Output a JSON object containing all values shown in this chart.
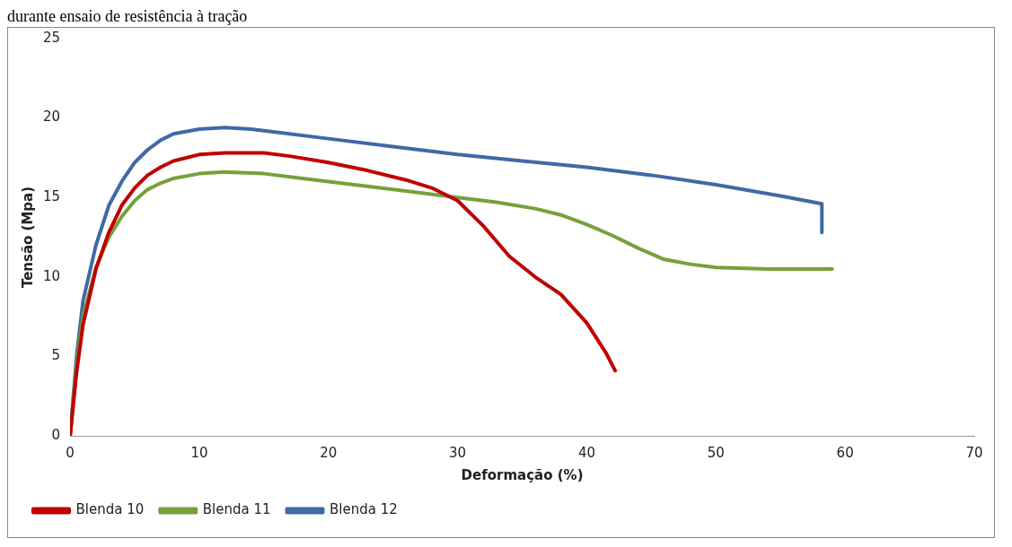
{
  "chart_data": {
    "type": "line",
    "title": "durante ensaio de resistência à tração",
    "xlabel": "Deformação (%)",
    "ylabel": "Tensão (Mpa)",
    "xlim": [
      0,
      70
    ],
    "xticks": [
      0,
      10,
      20,
      30,
      40,
      50,
      60,
      70
    ],
    "ylim": [
      0,
      25
    ],
    "yticks": [
      0,
      5,
      10,
      15,
      20,
      25
    ],
    "grid": false,
    "legend": "bottom",
    "marker": "none",
    "line_style": "solid",
    "series": [
      {
        "name": "Blenda 10",
        "color": "#c00000",
        "x": [
          0,
          0.5,
          1,
          2,
          3,
          4,
          5,
          6,
          7,
          8,
          10,
          12,
          15,
          17,
          20,
          23,
          26,
          28,
          30,
          32,
          34,
          36,
          38,
          40,
          41.5,
          42.2
        ],
        "values": [
          0,
          4,
          7,
          10.5,
          12.8,
          14.5,
          15.6,
          16.4,
          16.9,
          17.3,
          17.7,
          17.8,
          17.8,
          17.6,
          17.2,
          16.7,
          16.1,
          15.6,
          14.8,
          13.2,
          11.3,
          10,
          8.9,
          7.1,
          5.2,
          4.1
        ]
      },
      {
        "name": "Blenda 11",
        "color": "#77a03a",
        "x": [
          0,
          0.5,
          1,
          2,
          3,
          4,
          5,
          6,
          7,
          8,
          10,
          12,
          15,
          18,
          20,
          25,
          30,
          33,
          36,
          38,
          40,
          42,
          44,
          46,
          48,
          50,
          54,
          57,
          59
        ],
        "values": [
          0,
          4.5,
          7.5,
          10.6,
          12.5,
          13.8,
          14.8,
          15.5,
          15.9,
          16.2,
          16.5,
          16.6,
          16.5,
          16.2,
          16,
          15.5,
          15,
          14.7,
          14.3,
          13.9,
          13.3,
          12.6,
          11.8,
          11.1,
          10.8,
          10.6,
          10.5,
          10.5,
          10.5
        ]
      },
      {
        "name": "Blenda 12",
        "color": "#3e6aa6",
        "x": [
          0,
          0.5,
          1,
          2,
          3,
          4,
          5,
          6,
          7,
          8,
          10,
          12,
          14,
          16,
          20,
          25,
          30,
          35,
          40,
          45,
          50,
          55,
          58.2,
          58.2
        ],
        "values": [
          0,
          5,
          8.5,
          12,
          14.5,
          16,
          17.2,
          18,
          18.6,
          19,
          19.3,
          19.4,
          19.3,
          19.1,
          18.7,
          18.2,
          17.7,
          17.3,
          16.9,
          16.4,
          15.8,
          15.1,
          14.6,
          12.8
        ]
      }
    ]
  }
}
